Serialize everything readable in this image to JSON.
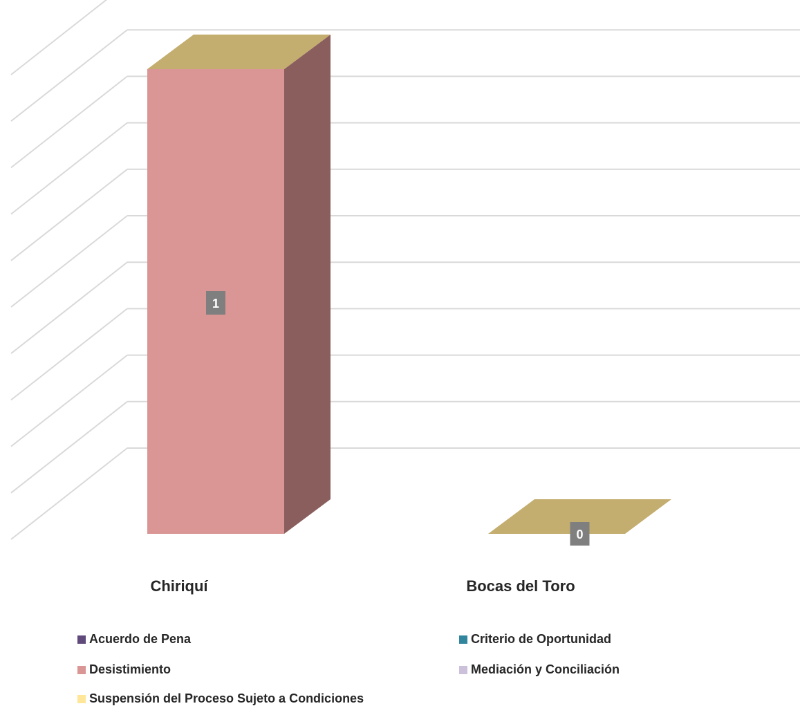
{
  "chart_data": {
    "type": "bar",
    "categories": [
      "Chiriquí",
      "Bocas del Toro"
    ],
    "series": [
      {
        "name": "Acuerdo de Pena",
        "color": "#604a7b",
        "values": [
          0,
          0
        ]
      },
      {
        "name": "Criterio de Oportunidad",
        "color": "#31859c",
        "values": [
          0,
          0
        ]
      },
      {
        "name": "Desistimiento",
        "color": "#d99694",
        "values": [
          1,
          0
        ]
      },
      {
        "name": "Mediación y Conciliación",
        "color": "#ccc1da",
        "values": [
          0,
          0
        ]
      },
      {
        "name": "Suspensión del Proceso Sujeto a Condiciones",
        "color": "#ffe699",
        "values": [
          0,
          0
        ]
      }
    ],
    "data_labels": [
      "1",
      "0"
    ],
    "ylim": [
      0,
      1
    ],
    "grid": true,
    "three_d": true,
    "legend_position": "bottom"
  },
  "colors": {
    "bar_front": "#d99694",
    "bar_side": "#8b5e5e",
    "bar_top": "#c3ad6f",
    "gridline": "#d9d9d9",
    "label_box": "#7f7f7f"
  }
}
